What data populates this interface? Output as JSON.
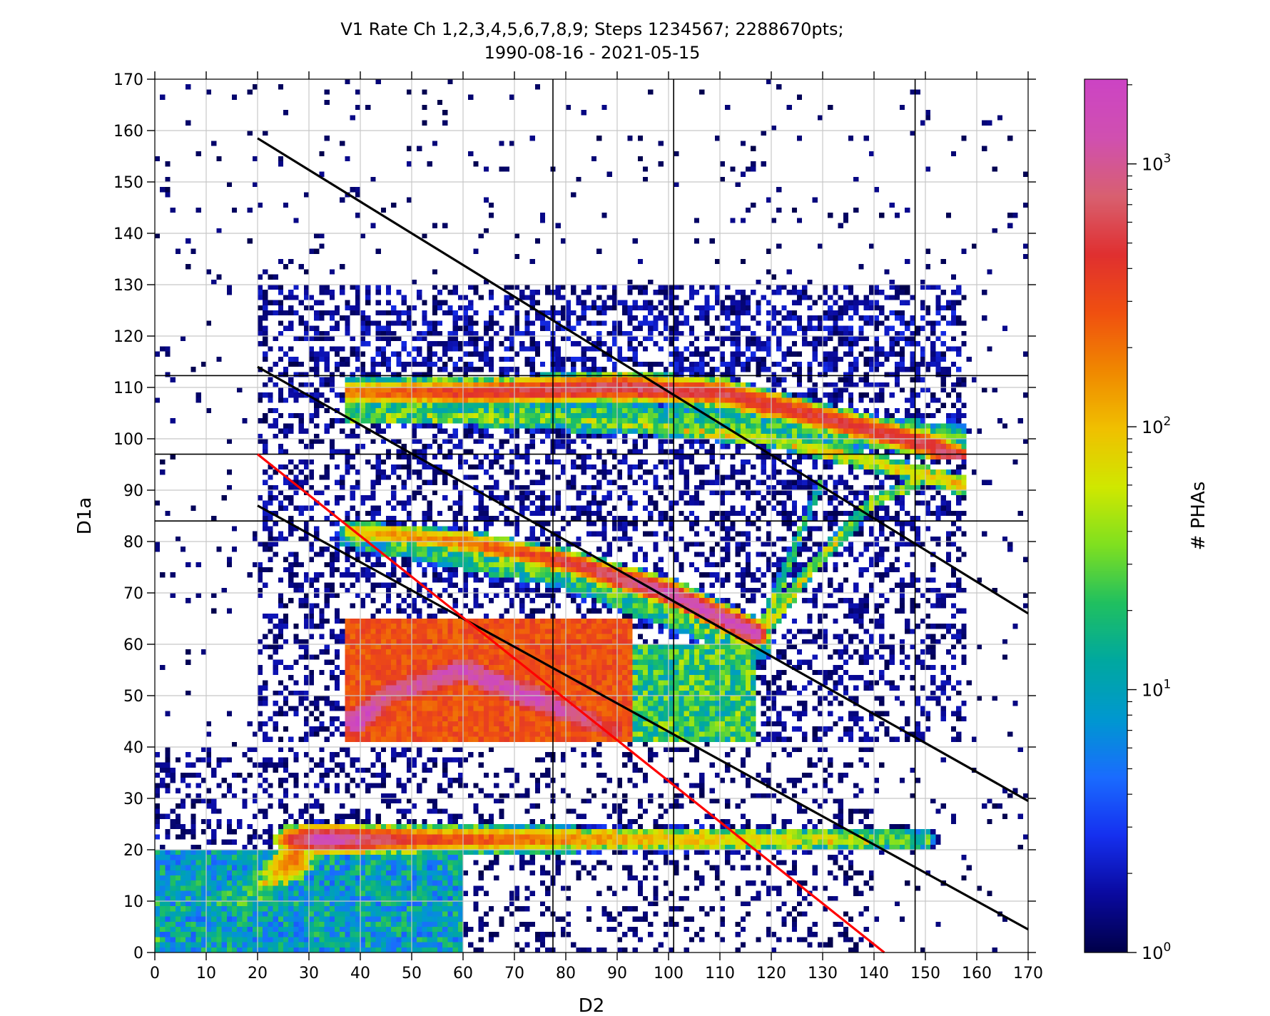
{
  "chart_data": {
    "type": "heatmap",
    "title_line1": "V1 Rate Ch 1,2,3,4,5,6,7,8,9; Steps 1234567; 2288670pts;",
    "title_line2": "1990-08-16 - 2021-05-15",
    "xlabel": "D2",
    "ylabel": "D1a",
    "colorbar_label": "# PHAs",
    "xlim": [
      0,
      170
    ],
    "ylim": [
      0,
      170
    ],
    "xticks": [
      0,
      10,
      20,
      30,
      40,
      50,
      60,
      70,
      80,
      90,
      100,
      110,
      120,
      130,
      140,
      150,
      160,
      170
    ],
    "yticks": [
      0,
      10,
      20,
      30,
      40,
      50,
      60,
      70,
      80,
      90,
      100,
      110,
      120,
      130,
      140,
      150,
      160,
      170
    ],
    "grid": true,
    "color_scale": "log",
    "clim": [
      1,
      2100
    ],
    "colorbar_ticks": [
      {
        "base": "10",
        "exp": "0",
        "value": 1
      },
      {
        "base": "10",
        "exp": "1",
        "value": 10
      },
      {
        "base": "10",
        "exp": "2",
        "value": 100
      },
      {
        "base": "10",
        "exp": "3",
        "value": 1000
      }
    ],
    "colormap": [
      "#00004a",
      "#0a0aa0",
      "#1530f0",
      "#1a6cff",
      "#0098d0",
      "#00a8a0",
      "#20c060",
      "#80e020",
      "#d0e800",
      "#f0c000",
      "#f08800",
      "#f05010",
      "#e03030",
      "#d86070",
      "#d050b0",
      "#cc44c4"
    ],
    "vertical_lines": [
      77.5,
      101,
      148
    ],
    "horizontal_lines": [
      112.3,
      97,
      84
    ],
    "diagonal_lines": [
      {
        "color": "#000000",
        "from": [
          20,
          158.5
        ],
        "to": [
          170,
          66
        ]
      },
      {
        "color": "#000000",
        "from": [
          20,
          114
        ],
        "to": [
          170,
          29.5
        ]
      },
      {
        "color": "#000000",
        "from": [
          20,
          87
        ],
        "to": [
          170,
          4.5
        ]
      },
      {
        "color": "#ff0000",
        "from": [
          20,
          97
        ],
        "to": [
          142,
          0
        ]
      }
    ],
    "density_components_log10": [
      {
        "type": "box",
        "x": [
          0,
          170
        ],
        "y": [
          0,
          170
        ],
        "v": 0.04
      },
      {
        "type": "box",
        "x": [
          20,
          157
        ],
        "y": [
          84,
          130
        ],
        "v": 0.55
      },
      {
        "type": "box",
        "x": [
          20,
          157
        ],
        "y": [
          41,
          100
        ],
        "v": 0.5
      },
      {
        "type": "box",
        "x": [
          0,
          60
        ],
        "y": [
          0,
          40
        ],
        "v": 0.45
      },
      {
        "type": "box",
        "x": [
          60,
          140
        ],
        "y": [
          0,
          40
        ],
        "v": 0.3
      },
      {
        "type": "box",
        "x": [
          0,
          60
        ],
        "y": [
          0,
          20
        ],
        "v": 1.0
      },
      {
        "type": "box",
        "x": [
          40,
          157
        ],
        "y": [
          113,
          126
        ],
        "v": 0.7
      },
      {
        "type": "box",
        "x": [
          37,
          117
        ],
        "y": [
          41,
          60
        ],
        "v": 1.35
      },
      {
        "type": "box",
        "x": [
          37,
          93
        ],
        "y": [
          41,
          65
        ],
        "v": 2.45
      },
      {
        "type": "track",
        "sigma": 3.5,
        "clip": [
          37,
          93,
          41,
          65
        ],
        "pts": [
          [
            39,
            45,
            3.3
          ],
          [
            45,
            50,
            3.0
          ],
          [
            60,
            55,
            3.15
          ],
          [
            75,
            49,
            3.2
          ],
          [
            90,
            43,
            2.7
          ]
        ]
      },
      {
        "type": "track",
        "sigma": 2.5,
        "clip": [
          37,
          158,
          96,
          113
        ],
        "pts": [
          [
            38,
            109,
            2.3
          ],
          [
            60,
            109,
            2.6
          ],
          [
            90,
            110,
            2.85
          ],
          [
            110,
            109,
            2.75
          ],
          [
            130,
            104,
            2.7
          ],
          [
            150,
            99,
            2.75
          ],
          [
            157,
            96,
            2.9
          ]
        ]
      },
      {
        "type": "track",
        "sigma": 2.0,
        "clip": [
          37,
          158,
          88,
          113
        ],
        "pts": [
          [
            38,
            104,
            1.5
          ],
          [
            80,
            104,
            1.6
          ],
          [
            120,
            100,
            1.8
          ],
          [
            150,
            93,
            1.9
          ],
          [
            157,
            91,
            2.1
          ]
        ]
      },
      {
        "type": "track",
        "sigma": 6.0,
        "clip": [
          37,
          158,
          84,
          116
        ],
        "pts": [
          [
            38,
            107,
            1.3
          ],
          [
            157,
            100,
            1.3
          ]
        ]
      },
      {
        "type": "track",
        "sigma": 2.2,
        "pts": [
          [
            38,
            82,
            2.0
          ],
          [
            60,
            80,
            2.3
          ],
          [
            80,
            76,
            2.7
          ],
          [
            100,
            70,
            3.15
          ],
          [
            117,
            62,
            3.25
          ]
        ]
      },
      {
        "type": "track",
        "sigma": 5.5,
        "pts": [
          [
            38,
            81,
            1.2
          ],
          [
            80,
            74,
            1.4
          ],
          [
            117,
            60,
            1.4
          ]
        ]
      },
      {
        "type": "track",
        "sigma": 1.6,
        "pts": [
          [
            118,
            62,
            1.9
          ],
          [
            128,
            75,
            1.7
          ],
          [
            140,
            88,
            1.6
          ],
          [
            150,
            92,
            1.6
          ]
        ]
      },
      {
        "type": "track",
        "sigma": 1.5,
        "pts": [
          [
            118,
            62,
            1.8
          ],
          [
            125,
            80,
            1.3
          ],
          [
            130,
            92,
            1.2
          ]
        ]
      },
      {
        "type": "track",
        "sigma": 2.5,
        "clip": [
          20,
          157,
          17,
          26.5
        ],
        "pts": [
          [
            26,
            22,
            2.6
          ],
          [
            32,
            22,
            3.3
          ],
          [
            50,
            22,
            2.6
          ],
          [
            90,
            22,
            2.1
          ],
          [
            130,
            22,
            1.8
          ],
          [
            150,
            22,
            1.5
          ]
        ]
      },
      {
        "type": "track",
        "sigma": 4.0,
        "pts": [
          [
            27,
            18,
            2.4
          ],
          [
            20,
            12,
            1.5
          ],
          [
            5,
            8,
            1.0
          ]
        ]
      },
      {
        "type": "track",
        "sigma": 0.6,
        "clip": [
          156,
          158,
          42,
          132
        ],
        "pts": [
          [
            157,
            42,
            1.2
          ],
          [
            157,
            132,
            1.1
          ]
        ]
      },
      {
        "type": "track",
        "sigma": 0.5,
        "clip": [
          0,
          1,
          0,
          30
        ],
        "pts": [
          [
            0.5,
            0,
            1.3
          ],
          [
            0.5,
            28,
            0.6
          ]
        ]
      }
    ]
  }
}
